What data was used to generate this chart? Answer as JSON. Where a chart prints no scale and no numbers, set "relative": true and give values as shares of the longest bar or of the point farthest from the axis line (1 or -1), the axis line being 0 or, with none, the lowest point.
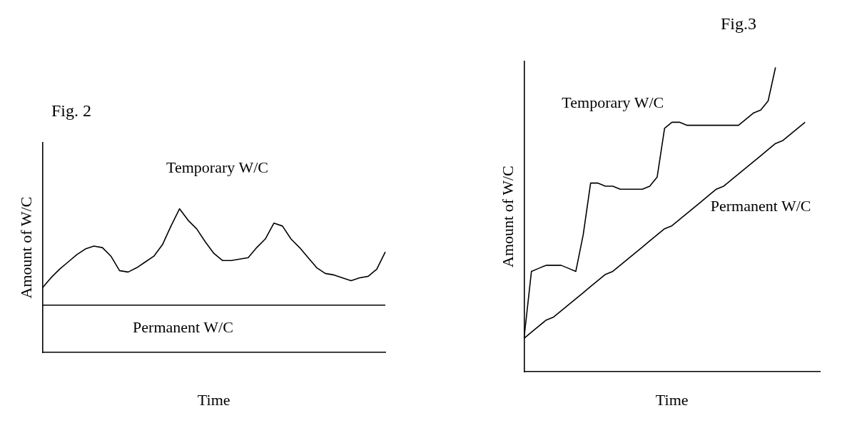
{
  "chart_data": [
    {
      "type": "line",
      "title": "Fig. 2",
      "xlabel": "Time",
      "ylabel": "Amount of W/C",
      "relative": true,
      "marker": "none",
      "line_style": "solid",
      "grid": false,
      "legend": false,
      "categories": [
        null,
        null,
        null,
        null,
        null,
        null,
        null,
        null,
        null,
        null,
        null,
        null,
        null,
        null,
        null,
        null,
        null,
        null,
        null,
        null,
        null,
        null,
        null,
        null,
        null,
        null,
        null,
        null,
        null,
        null,
        null,
        null,
        null,
        null,
        null,
        null,
        null,
        null,
        null,
        null,
        null
      ],
      "series": [
        {
          "name": "Temporary W/C",
          "color": "#000000",
          "values": [
            0.45,
            0.52,
            0.58,
            0.63,
            0.68,
            0.72,
            0.74,
            0.73,
            0.67,
            0.57,
            0.56,
            0.59,
            0.63,
            0.67,
            0.75,
            0.88,
            1,
            0.92,
            0.86,
            0.77,
            0.69,
            0.64,
            0.64,
            0.65,
            0.66,
            0.73,
            0.79,
            0.9,
            0.88,
            0.79,
            0.73,
            0.66,
            0.59,
            0.55,
            0.54,
            0.52,
            0.5,
            0.52,
            0.53,
            0.58,
            0.7
          ]
        },
        {
          "name": "Permanent W/C",
          "color": "#000000",
          "values": [
            0.33,
            0.33,
            0.33,
            0.33,
            0.33,
            0.33,
            0.33,
            0.33,
            0.33,
            0.33,
            0.33,
            0.33,
            0.33,
            0.33,
            0.33,
            0.33,
            0.33,
            0.33,
            0.33,
            0.33,
            0.33,
            0.33,
            0.33,
            0.33,
            0.33,
            0.33,
            0.33,
            0.33,
            0.33,
            0.33,
            0.33,
            0.33,
            0.33,
            0.33,
            0.33,
            0.33,
            0.33,
            0.33,
            0.33,
            0.33,
            0.33
          ]
        }
      ]
    },
    {
      "type": "line",
      "title": "Fig.3",
      "xlabel": "Time",
      "ylabel": "Amount of W/C",
      "relative": true,
      "marker": "none",
      "line_style": "solid",
      "grid": false,
      "legend": false,
      "categories": [
        null,
        null,
        null,
        null,
        null,
        null,
        null,
        null,
        null,
        null,
        null,
        null,
        null,
        null,
        null,
        null,
        null,
        null,
        null,
        null,
        null,
        null,
        null,
        null,
        null,
        null,
        null,
        null,
        null,
        null,
        null,
        null,
        null,
        null,
        null,
        null,
        null,
        null,
        null,
        null,
        null
      ],
      "series": [
        {
          "name": "Temporary W/C",
          "color": "#000000",
          "values": [
            0.11,
            0.33,
            0.34,
            0.35,
            0.35,
            0.35,
            0.34,
            0.33,
            0.45,
            0.62,
            0.62,
            0.61,
            0.61,
            0.6,
            0.6,
            0.6,
            0.6,
            0.61,
            0.64,
            0.8,
            0.82,
            0.82,
            0.81,
            0.81,
            0.81,
            0.81,
            0.81,
            0.81,
            0.81,
            0.81,
            0.83,
            0.85,
            0.86,
            0.89,
            1,
            null,
            null,
            null,
            null,
            null,
            null
          ]
        },
        {
          "name": "Permanent W/C",
          "color": "#000000",
          "values": [
            0.11,
            0.13,
            0.15,
            0.17,
            0.18,
            0.2,
            0.22,
            0.24,
            0.26,
            0.28,
            0.3,
            0.32,
            0.33,
            0.35,
            0.37,
            0.39,
            0.41,
            0.43,
            0.45,
            0.47,
            0.48,
            0.5,
            0.52,
            0.54,
            0.56,
            0.58,
            0.6,
            0.61,
            0.63,
            0.65,
            0.67,
            0.69,
            0.71,
            0.73,
            0.75,
            0.76,
            0.78,
            0.8,
            0.82,
            null,
            null
          ]
        }
      ]
    }
  ]
}
